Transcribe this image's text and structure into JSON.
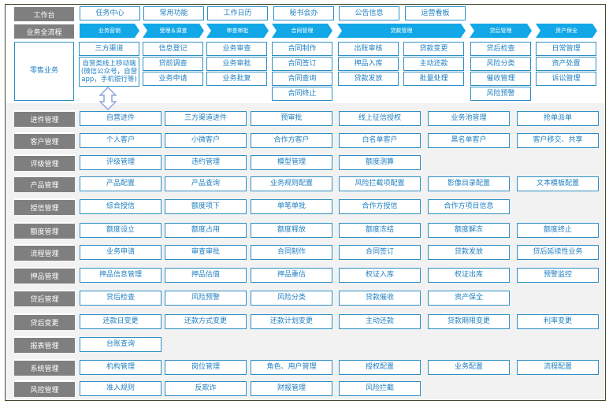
{
  "workbench": {
    "label": "工作台",
    "items": [
      "任务中心",
      "常用功能",
      "工作日历",
      "秘书会办",
      "公告信息",
      "运营看板"
    ]
  },
  "process": {
    "label": "业务全流程",
    "stages": [
      "业务营销",
      "受理＆调查",
      "审查审批",
      "合同管理",
      "贷款管理",
      "贷后管理",
      "资产保全"
    ]
  },
  "retail": {
    "label": "零售业务",
    "columns": [
      [
        "三方渠道",
        "自营类线上移动端(微信公众号，自营app，手机银行等)"
      ],
      [
        "信息登记",
        "贷前调查",
        "业务申请"
      ],
      [
        "业务审查",
        "业务审批",
        "业务批复"
      ],
      [
        "合同制作",
        "合同签订",
        "合同查询",
        "合同终止"
      ],
      [
        "出账审核",
        "押品入库",
        "贷款发放"
      ],
      [
        "贷款变更",
        "主动还款",
        "批量处理"
      ],
      [
        "贷后检查",
        "风险分类",
        "催收管理",
        "风险预警"
      ],
      [
        "日常管理",
        "资产处置",
        "诉讼管理"
      ]
    ]
  },
  "modules": [
    {
      "label": "进件管理",
      "items": [
        "自营进件",
        "三方渠道进件",
        "预审批",
        "线上征信授权",
        "业务池管理",
        "抢单派单"
      ]
    },
    {
      "label": "客户管理",
      "items": [
        "个人客户",
        "小微客户",
        "合作方客户",
        "白名单客户",
        "黑名单客户",
        "客户移交、共享"
      ]
    },
    {
      "label": "评级管理",
      "items": [
        "评级管理",
        "违约管理",
        "模型管理",
        "额度测算"
      ]
    },
    {
      "label": "产品管理",
      "items": [
        "产品配置",
        "产品查询",
        "业务规则配置",
        "风险拦截项配置",
        "影像目录配置",
        "文本模板配置"
      ]
    },
    {
      "label": "授信管理",
      "items": [
        "综合授信",
        "额度项下",
        "单笔单批",
        "合作方授信",
        "合作方项目信息"
      ]
    },
    {
      "label": "额度管理",
      "items": [
        "额度设立",
        "额度占用",
        "额度释放",
        "额度冻结",
        "额度解冻",
        "额度终止"
      ]
    },
    {
      "label": "流程管理",
      "items": [
        "业务申请",
        "审查审批",
        "合同制作",
        "合同签订",
        "贷款发放",
        "贷后延续性业务"
      ]
    },
    {
      "label": "押品管理",
      "items": [
        "押品信息管理",
        "押品估值",
        "押品重估",
        "权证入库",
        "权证出库",
        "预警监控"
      ]
    },
    {
      "label": "贷后管理",
      "items": [
        "贷后检查",
        "风险预警",
        "风险分类",
        "贷款催收",
        "资产保全"
      ]
    },
    {
      "label": "贷后变更",
      "items": [
        "还款日变更",
        "还款方式变更",
        "还款计划变更",
        "主动还款",
        "贷款期限变更",
        "利率变更"
      ]
    },
    {
      "label": "报表管理",
      "items": [
        "台账查询"
      ]
    },
    {
      "label": "系统管理",
      "items": [
        "机构管理",
        "岗位管理",
        "角色、用户管理",
        "授权配置",
        "业务配置",
        "流程配置"
      ]
    },
    {
      "label": "风控管理",
      "items": [
        "准入规则",
        "反欺诈",
        "财报管理",
        "风险拦截"
      ]
    }
  ],
  "colors": {
    "label_bg": "#7f7f7f",
    "chevron": "#12a7e6",
    "box_border": "#2e8fc4",
    "box_text": "#1f7fc0",
    "lower_bg": "#f2f2f2"
  }
}
